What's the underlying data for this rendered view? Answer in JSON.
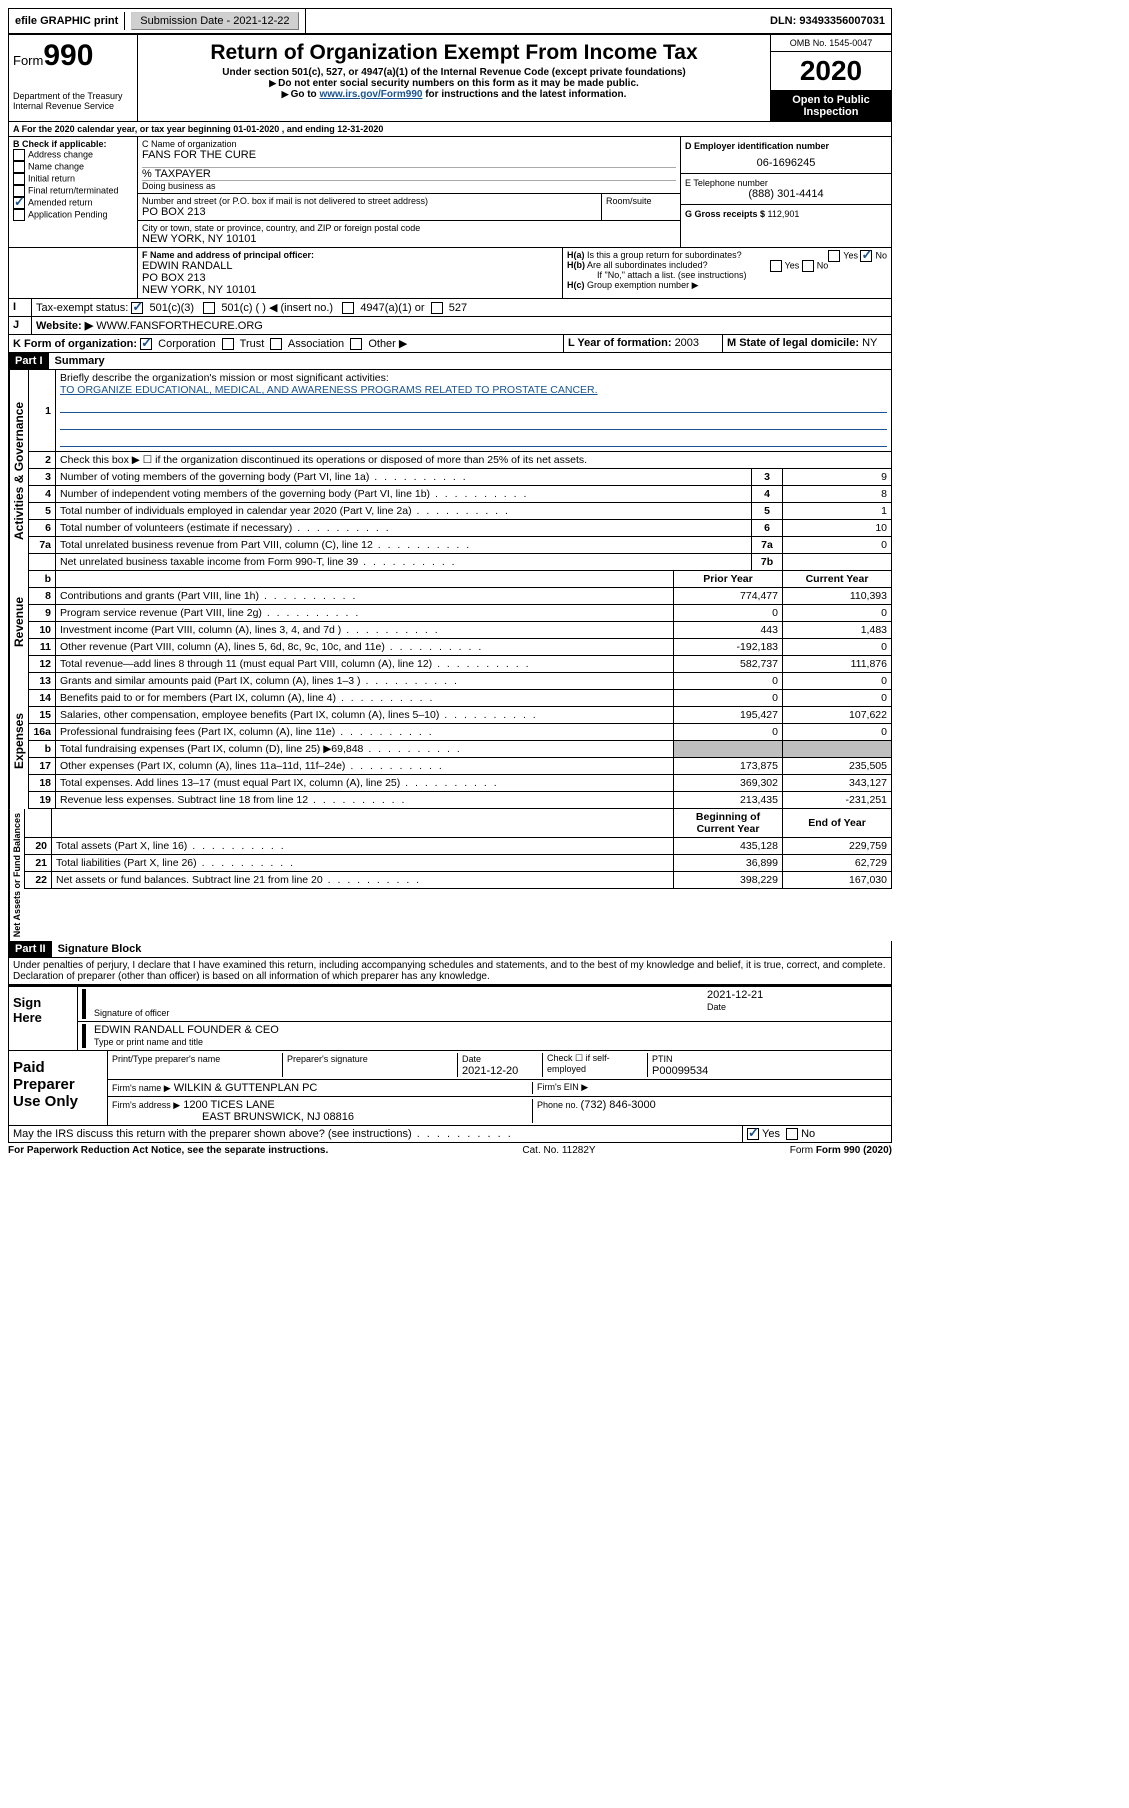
{
  "topbar": {
    "efile": "efile GRAPHIC print",
    "subdate_label": "Submission Date - ",
    "subdate": "2021-12-22",
    "dln_label": "DLN: ",
    "dln": "93493356007031"
  },
  "header": {
    "form_label": "Form",
    "form_num": "990",
    "dept": "Department of the Treasury\nInternal Revenue Service",
    "title": "Return of Organization Exempt From Income Tax",
    "sub1": "Under section 501(c), 527, or 4947(a)(1) of the Internal Revenue Code (except private foundations)",
    "sub2": "Do not enter social security numbers on this form as it may be made public.",
    "sub3_pre": "Go to ",
    "sub3_link": "www.irs.gov/Form990",
    "sub3_post": " for instructions and the latest information.",
    "omb": "OMB No. 1545-0047",
    "year": "2020",
    "open": "Open to Public Inspection"
  },
  "a_line": "For the 2020 calendar year, or tax year beginning 01-01-2020   , and ending 12-31-2020",
  "b": {
    "label": "B Check if applicable:",
    "items": [
      "Address change",
      "Name change",
      "Initial return",
      "Final return/terminated",
      "Amended return",
      "Application Pending"
    ],
    "checked": [
      false,
      false,
      false,
      false,
      true,
      false
    ]
  },
  "c": {
    "name_label": "C Name of organization",
    "name": "FANS FOR THE CURE",
    "tax": "% TAXPAYER",
    "dba_label": "Doing business as",
    "dba": "",
    "street_label": "Number and street (or P.O. box if mail is not delivered to street address)",
    "street": "PO BOX 213",
    "room_label": "Room/suite",
    "city_label": "City or town, state or province, country, and ZIP or foreign postal code",
    "city": "NEW YORK, NY  10101"
  },
  "d": {
    "label": "D Employer identification number",
    "val": "06-1696245"
  },
  "e": {
    "label": "E Telephone number",
    "val": "(888) 301-4414"
  },
  "g": {
    "label": "G Gross receipts $ ",
    "val": "112,901"
  },
  "f": {
    "label": "F  Name and address of principal officer:",
    "name": "EDWIN RANDALL",
    "addr1": "PO BOX 213",
    "addr2": "NEW YORK, NY  10101"
  },
  "h": {
    "a_label": "Is this a group return for subordinates?",
    "a_yes": "Yes",
    "a_no": "No",
    "b_label": "Are all subordinates included?",
    "b_note": "If \"No,\" attach a list. (see instructions)",
    "c_label": "Group exemption number ▶"
  },
  "i": {
    "label": "Tax-exempt status:",
    "opts": [
      "501(c)(3)",
      "501(c) (  ) ◀ (insert no.)",
      "4947(a)(1) or",
      "527"
    ]
  },
  "j": {
    "label": "Website: ▶",
    "val": "WWW.FANSFORTHECURE.ORG"
  },
  "k": {
    "label": "K Form of organization:",
    "opts": [
      "Corporation",
      "Trust",
      "Association",
      "Other ▶"
    ]
  },
  "l": {
    "label": "L Year of formation: ",
    "val": "2003"
  },
  "m": {
    "label": "M State of legal domicile: ",
    "val": "NY"
  },
  "part1": {
    "bar": "Part I",
    "title": "Summary",
    "l1_label": "Briefly describe the organization's mission or most significant activities:",
    "l1_val": "TO ORGANIZE EDUCATIONAL, MEDICAL, AND AWARENESS PROGRAMS RELATED TO PROSTATE CANCER.",
    "l2": "Check this box ▶ ☐  if the organization discontinued its operations or disposed of more than 25% of its net assets.",
    "tabs": [
      "Activities & Governance",
      "Revenue",
      "Expenses",
      "Net Assets or Fund Balances"
    ],
    "gov": [
      {
        "n": "3",
        "t": "Number of voting members of the governing body (Part VI, line 1a)",
        "b": "3",
        "v": "9"
      },
      {
        "n": "4",
        "t": "Number of independent voting members of the governing body (Part VI, line 1b)",
        "b": "4",
        "v": "8"
      },
      {
        "n": "5",
        "t": "Total number of individuals employed in calendar year 2020 (Part V, line 2a)",
        "b": "5",
        "v": "1"
      },
      {
        "n": "6",
        "t": "Total number of volunteers (estimate if necessary)",
        "b": "6",
        "v": "10"
      },
      {
        "n": "7a",
        "t": "Total unrelated business revenue from Part VIII, column (C), line 12",
        "b": "7a",
        "v": "0"
      },
      {
        "n": "",
        "t": "Net unrelated business taxable income from Form 990-T, line 39",
        "b": "7b",
        "v": ""
      }
    ],
    "col_hdr": {
      "n": "b",
      "prior": "Prior Year",
      "curr": "Current Year"
    },
    "rev": [
      {
        "n": "8",
        "t": "Contributions and grants (Part VIII, line 1h)",
        "p": "774,477",
        "c": "110,393"
      },
      {
        "n": "9",
        "t": "Program service revenue (Part VIII, line 2g)",
        "p": "0",
        "c": "0"
      },
      {
        "n": "10",
        "t": "Investment income (Part VIII, column (A), lines 3, 4, and 7d )",
        "p": "443",
        "c": "1,483"
      },
      {
        "n": "11",
        "t": "Other revenue (Part VIII, column (A), lines 5, 6d, 8c, 9c, 10c, and 11e)",
        "p": "-192,183",
        "c": "0"
      },
      {
        "n": "12",
        "t": "Total revenue—add lines 8 through 11 (must equal Part VIII, column (A), line 12)",
        "p": "582,737",
        "c": "111,876"
      }
    ],
    "exp": [
      {
        "n": "13",
        "t": "Grants and similar amounts paid (Part IX, column (A), lines 1–3 )",
        "p": "0",
        "c": "0"
      },
      {
        "n": "14",
        "t": "Benefits paid to or for members (Part IX, column (A), line 4)",
        "p": "0",
        "c": "0"
      },
      {
        "n": "15",
        "t": "Salaries, other compensation, employee benefits (Part IX, column (A), lines 5–10)",
        "p": "195,427",
        "c": "107,622"
      },
      {
        "n": "16a",
        "t": "Professional fundraising fees (Part IX, column (A), line 11e)",
        "p": "0",
        "c": "0"
      },
      {
        "n": "b",
        "t": "Total fundraising expenses (Part IX, column (D), line 25) ▶69,848",
        "p": "shade",
        "c": "shade"
      },
      {
        "n": "17",
        "t": "Other expenses (Part IX, column (A), lines 11a–11d, 11f–24e)",
        "p": "173,875",
        "c": "235,505"
      },
      {
        "n": "18",
        "t": "Total expenses. Add lines 13–17 (must equal Part IX, column (A), line 25)",
        "p": "369,302",
        "c": "343,127"
      },
      {
        "n": "19",
        "t": "Revenue less expenses. Subtract line 18 from line 12",
        "p": "213,435",
        "c": "-231,251"
      }
    ],
    "na_hdr": {
      "b": "Beginning of Current Year",
      "e": "End of Year"
    },
    "na": [
      {
        "n": "20",
        "t": "Total assets (Part X, line 16)",
        "p": "435,128",
        "c": "229,759"
      },
      {
        "n": "21",
        "t": "Total liabilities (Part X, line 26)",
        "p": "36,899",
        "c": "62,729"
      },
      {
        "n": "22",
        "t": "Net assets or fund balances. Subtract line 21 from line 20",
        "p": "398,229",
        "c": "167,030"
      }
    ]
  },
  "part2": {
    "bar": "Part II",
    "title": "Signature Block",
    "decl": "Under penalties of perjury, I declare that I have examined this return, including accompanying schedules and statements, and to the best of my knowledge and belief, it is true, correct, and complete. Declaration of preparer (other than officer) is based on all information of which preparer has any knowledge.",
    "sign_here": "Sign Here",
    "sig_officer": "Signature of officer",
    "date": "Date",
    "sig_date": "2021-12-21",
    "officer": "EDWIN RANDALL  FOUNDER & CEO",
    "type_label": "Type or print name and title",
    "paid": "Paid Preparer Use Only",
    "pp": {
      "name_label": "Print/Type preparer's name",
      "sig_label": "Preparer's signature",
      "date_label": "Date",
      "date": "2021-12-20",
      "check": "Check ☐ if self-employed",
      "ptin_label": "PTIN",
      "ptin": "P00099534",
      "firm_label": "Firm's name    ▶",
      "firm": "WILKIN & GUTTENPLAN PC",
      "ein_label": "Firm's EIN ▶",
      "addr_label": "Firm's address ▶",
      "addr1": "1200 TICES LANE",
      "addr2": "EAST BRUNSWICK, NJ  08816",
      "phone_label": "Phone no. ",
      "phone": "(732) 846-3000"
    },
    "irs_q": "May the IRS discuss this return with the preparer shown above? (see instructions)",
    "yes": "Yes",
    "no": "No"
  },
  "footer": {
    "pra": "For Paperwork Reduction Act Notice, see the separate instructions.",
    "cat": "Cat. No. 11282Y",
    "form": "Form 990 (2020)"
  }
}
